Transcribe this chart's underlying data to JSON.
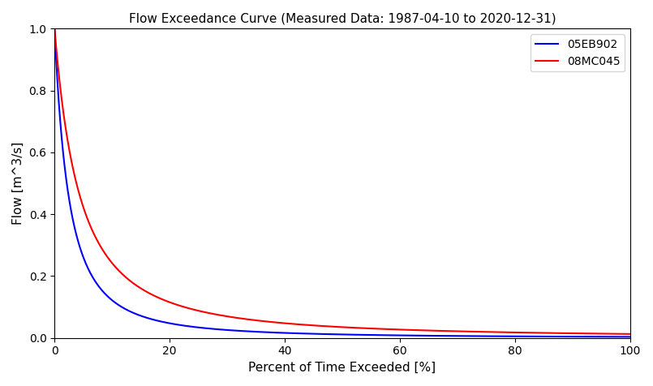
{
  "title": "Flow Exceedance Curve (Measured Data: 1987-04-10 to 2020-12-31)",
  "xlabel": "Percent of Time Exceeded [%]",
  "ylabel": "Flow [m^3/s]",
  "xlim": [
    0,
    100
  ],
  "ylim": [
    0,
    1.0
  ],
  "legend_labels": [
    "05EB902",
    "08MC045"
  ],
  "colors": [
    "blue",
    "red"
  ],
  "blue_params": {
    "scale": 4.5,
    "power": 1.8
  },
  "red_params": {
    "scale": 7.0,
    "power": 1.6
  },
  "background_color": "#ffffff"
}
